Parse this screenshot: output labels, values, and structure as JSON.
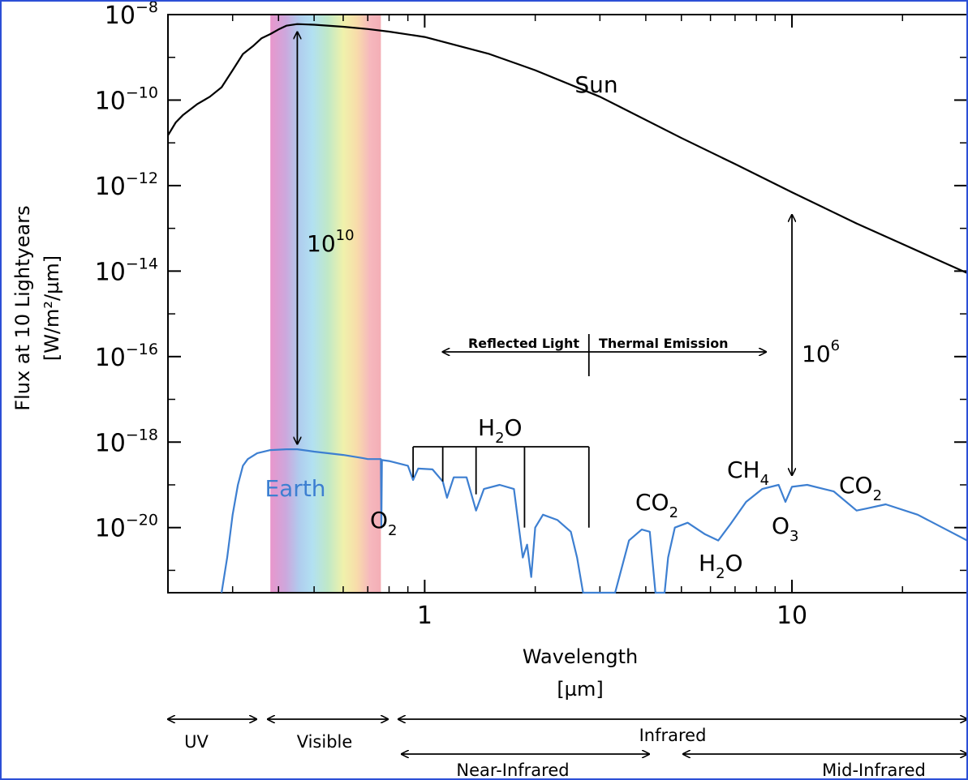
{
  "chart_data": {
    "type": "line",
    "title": "",
    "xscale": "log",
    "yscale": "log",
    "xlabel": "Wavelength",
    "xlabel_unit": "[µm]",
    "ylabel": "Flux at 10 Lightyears",
    "ylabel_unit": "[W/m²/µm]",
    "xlim": [
      0.2,
      30
    ],
    "ylim": [
      3e-22,
      1e-08
    ],
    "grid": false,
    "x_ticks": [
      {
        "value": 1,
        "label": "1"
      },
      {
        "value": 10,
        "label": "10"
      }
    ],
    "y_ticks": [
      {
        "value": 1e-08,
        "base": "10",
        "exp": "−8"
      },
      {
        "value": 1e-10,
        "base": "10",
        "exp": "−10"
      },
      {
        "value": 1e-12,
        "base": "10",
        "exp": "−12"
      },
      {
        "value": 1e-14,
        "base": "10",
        "exp": "−14"
      },
      {
        "value": 1e-16,
        "base": "10",
        "exp": "−16"
      },
      {
        "value": 1e-18,
        "base": "10",
        "exp": "−18"
      },
      {
        "value": 1e-20,
        "base": "10",
        "exp": "−20"
      }
    ],
    "series": [
      {
        "name": "Sun",
        "color": "#000000",
        "points": [
          [
            0.2,
            1.5e-11
          ],
          [
            0.21,
            3e-11
          ],
          [
            0.22,
            4.5e-11
          ],
          [
            0.24,
            8e-11
          ],
          [
            0.26,
            1.2e-10
          ],
          [
            0.28,
            2e-10
          ],
          [
            0.3,
            5e-10
          ],
          [
            0.32,
            1.2e-09
          ],
          [
            0.34,
            1.8e-09
          ],
          [
            0.36,
            2.8e-09
          ],
          [
            0.38,
            3.5e-09
          ],
          [
            0.4,
            4.5e-09
          ],
          [
            0.42,
            5.5e-09
          ],
          [
            0.45,
            6e-09
          ],
          [
            0.5,
            5.8e-09
          ],
          [
            0.6,
            5.2e-09
          ],
          [
            0.7,
            4.6e-09
          ],
          [
            0.8,
            4e-09
          ],
          [
            1,
            3e-09
          ],
          [
            1.5,
            1.2e-09
          ],
          [
            2,
            5e-10
          ],
          [
            3,
            1.2e-10
          ],
          [
            5,
            1.3e-11
          ],
          [
            7,
            3.2e-12
          ],
          [
            10,
            7e-13
          ],
          [
            15,
            1.3e-13
          ],
          [
            20,
            4.3e-14
          ],
          [
            30,
            9e-15
          ]
        ]
      },
      {
        "name": "Earth",
        "color": "#3d7fd1",
        "points": [
          [
            0.28,
            3e-22
          ],
          [
            0.29,
            2e-21
          ],
          [
            0.3,
            2e-20
          ],
          [
            0.31,
            1e-19
          ],
          [
            0.32,
            2.8e-19
          ],
          [
            0.33,
            4e-19
          ],
          [
            0.35,
            5.5e-19
          ],
          [
            0.38,
            6.5e-19
          ],
          [
            0.42,
            6.8e-19
          ],
          [
            0.45,
            6.8e-19
          ],
          [
            0.5,
            6e-19
          ],
          [
            0.6,
            5e-19
          ],
          [
            0.68,
            4.2e-19
          ],
          [
            0.7,
            4e-19
          ],
          [
            0.76,
            4e-19
          ],
          [
            0.762,
            1e-20
          ],
          [
            0.765,
            3.8e-19
          ],
          [
            0.8,
            3.6e-19
          ],
          [
            0.9,
            2.8e-19
          ],
          [
            0.93,
            1.3e-19
          ],
          [
            0.96,
            2.4e-19
          ],
          [
            1.05,
            2.3e-19
          ],
          [
            1.12,
            1.2e-19
          ],
          [
            1.15,
            5e-20
          ],
          [
            1.2,
            1.5e-19
          ],
          [
            1.3,
            1.5e-19
          ],
          [
            1.38,
            2.5e-20
          ],
          [
            1.45,
            8e-20
          ],
          [
            1.6,
            1e-19
          ],
          [
            1.75,
            8e-20
          ],
          [
            1.85,
            2e-21
          ],
          [
            1.9,
            4e-21
          ],
          [
            1.95,
            7e-22
          ],
          [
            2.0,
            1e-20
          ],
          [
            2.1,
            2e-20
          ],
          [
            2.3,
            1.5e-20
          ],
          [
            2.5,
            8e-21
          ],
          [
            2.6,
            2e-21
          ],
          [
            2.7,
            3e-22
          ],
          [
            3.3,
            3e-22
          ],
          [
            3.6,
            5e-21
          ],
          [
            3.9,
            9e-21
          ],
          [
            4.1,
            8e-21
          ],
          [
            4.25,
            3e-22
          ],
          [
            4.5,
            3e-22
          ],
          [
            4.6,
            2e-21
          ],
          [
            4.8,
            1e-20
          ],
          [
            5.2,
            1.3e-20
          ],
          [
            5.8,
            7e-21
          ],
          [
            6.3,
            5e-21
          ],
          [
            6.8,
            1.2e-20
          ],
          [
            7.5,
            4e-20
          ],
          [
            8.3,
            8e-20
          ],
          [
            9.2,
            1e-19
          ],
          [
            9.6,
            4e-20
          ],
          [
            10,
            9e-20
          ],
          [
            11,
            1e-19
          ],
          [
            13,
            7e-20
          ],
          [
            15,
            2.5e-20
          ],
          [
            16,
            2.8e-20
          ],
          [
            18,
            3.5e-20
          ],
          [
            22,
            2e-20
          ],
          [
            27,
            8e-21
          ],
          [
            30,
            5e-21
          ]
        ]
      }
    ],
    "visible_band": {
      "from": 0.38,
      "to": 0.76
    },
    "annotations": {
      "sun_label": "Sun",
      "earth_label": "Earth",
      "ratio_visible": {
        "base": "10",
        "exp": "10"
      },
      "ratio_ir": {
        "base": "10",
        "exp": "6"
      },
      "reflected_light": "Reflected Light",
      "thermal_emission": "Thermal Emission",
      "h2o_top": {
        "main": "H",
        "sub": "2",
        "tail": "O"
      },
      "o2": {
        "main": "O",
        "sub": "2"
      },
      "co2_left": {
        "main": "CO",
        "sub": "2"
      },
      "h2o_bottom": {
        "main": "H",
        "sub": "2",
        "tail": "O"
      },
      "ch4": {
        "main": "CH",
        "sub": "4"
      },
      "o3": {
        "main": "O",
        "sub": "3"
      },
      "co2_right": {
        "main": "CO",
        "sub": "2"
      }
    },
    "bands": {
      "uv": "UV",
      "visible": "Visible",
      "infrared": "Infrared",
      "near_infrared": "Near-Infrared",
      "mid_infrared": "Mid-Infrared"
    }
  }
}
